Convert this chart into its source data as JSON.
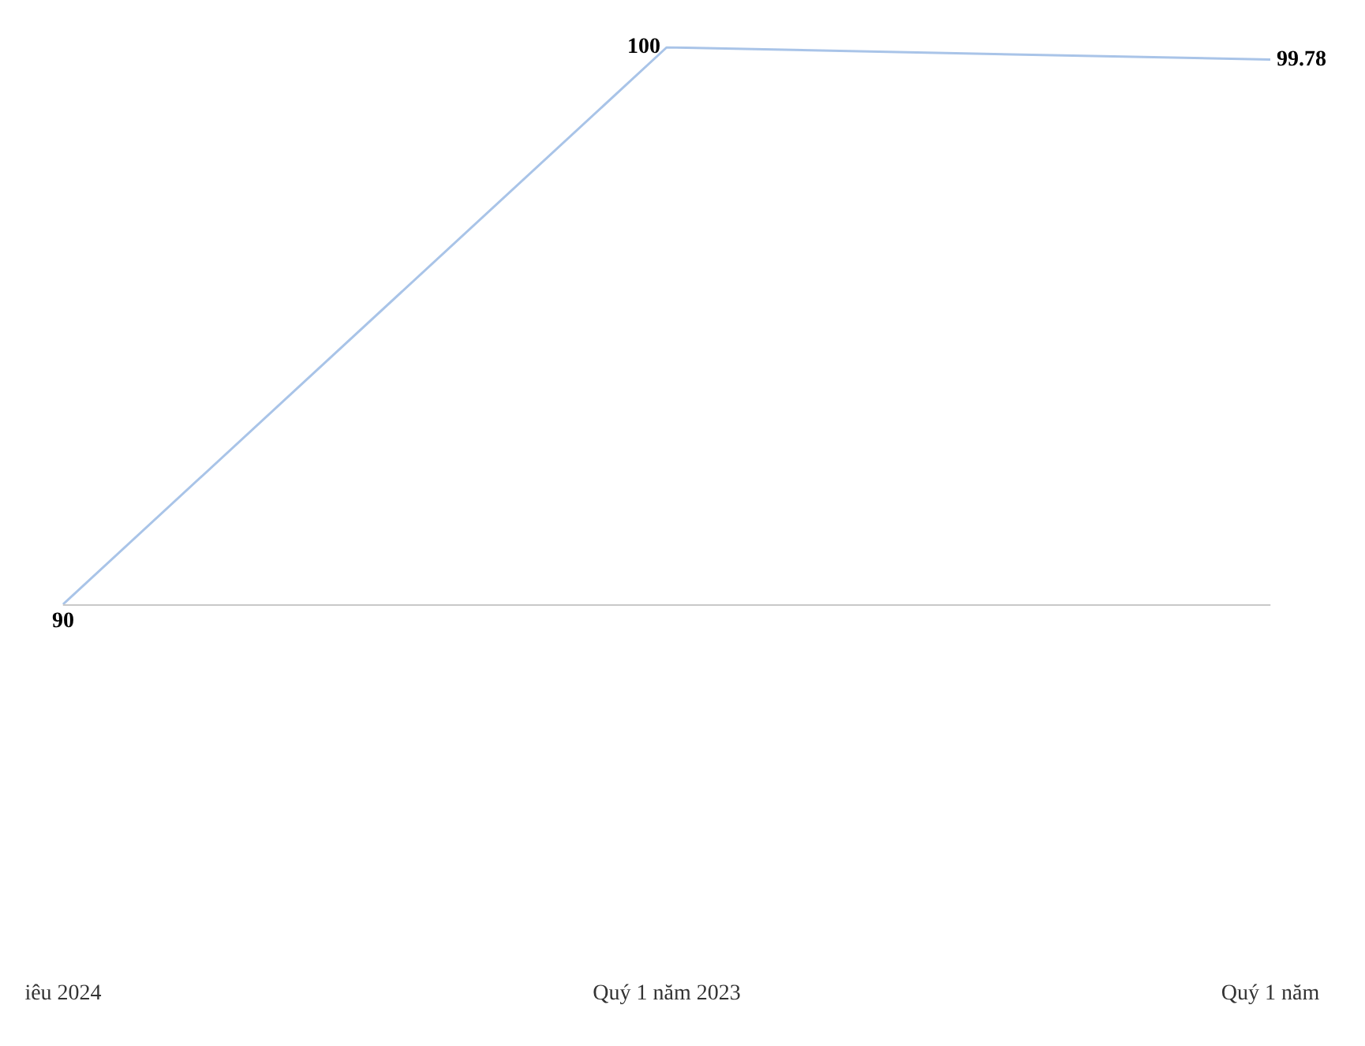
{
  "chart_data": {
    "type": "line",
    "categories": [
      "iêu 2024",
      "Quý 1 năm 2023",
      "Quý 1 năm"
    ],
    "series": [
      {
        "color": "#a9c4e8",
        "values": [
          90,
          100,
          99.78
        ]
      }
    ],
    "data_labels": true,
    "marker": "none",
    "tick_labels": "x",
    "ref_lines": [
      {
        "axis": "y",
        "value": 90,
        "color": "#c8c8c8"
      }
    ]
  }
}
